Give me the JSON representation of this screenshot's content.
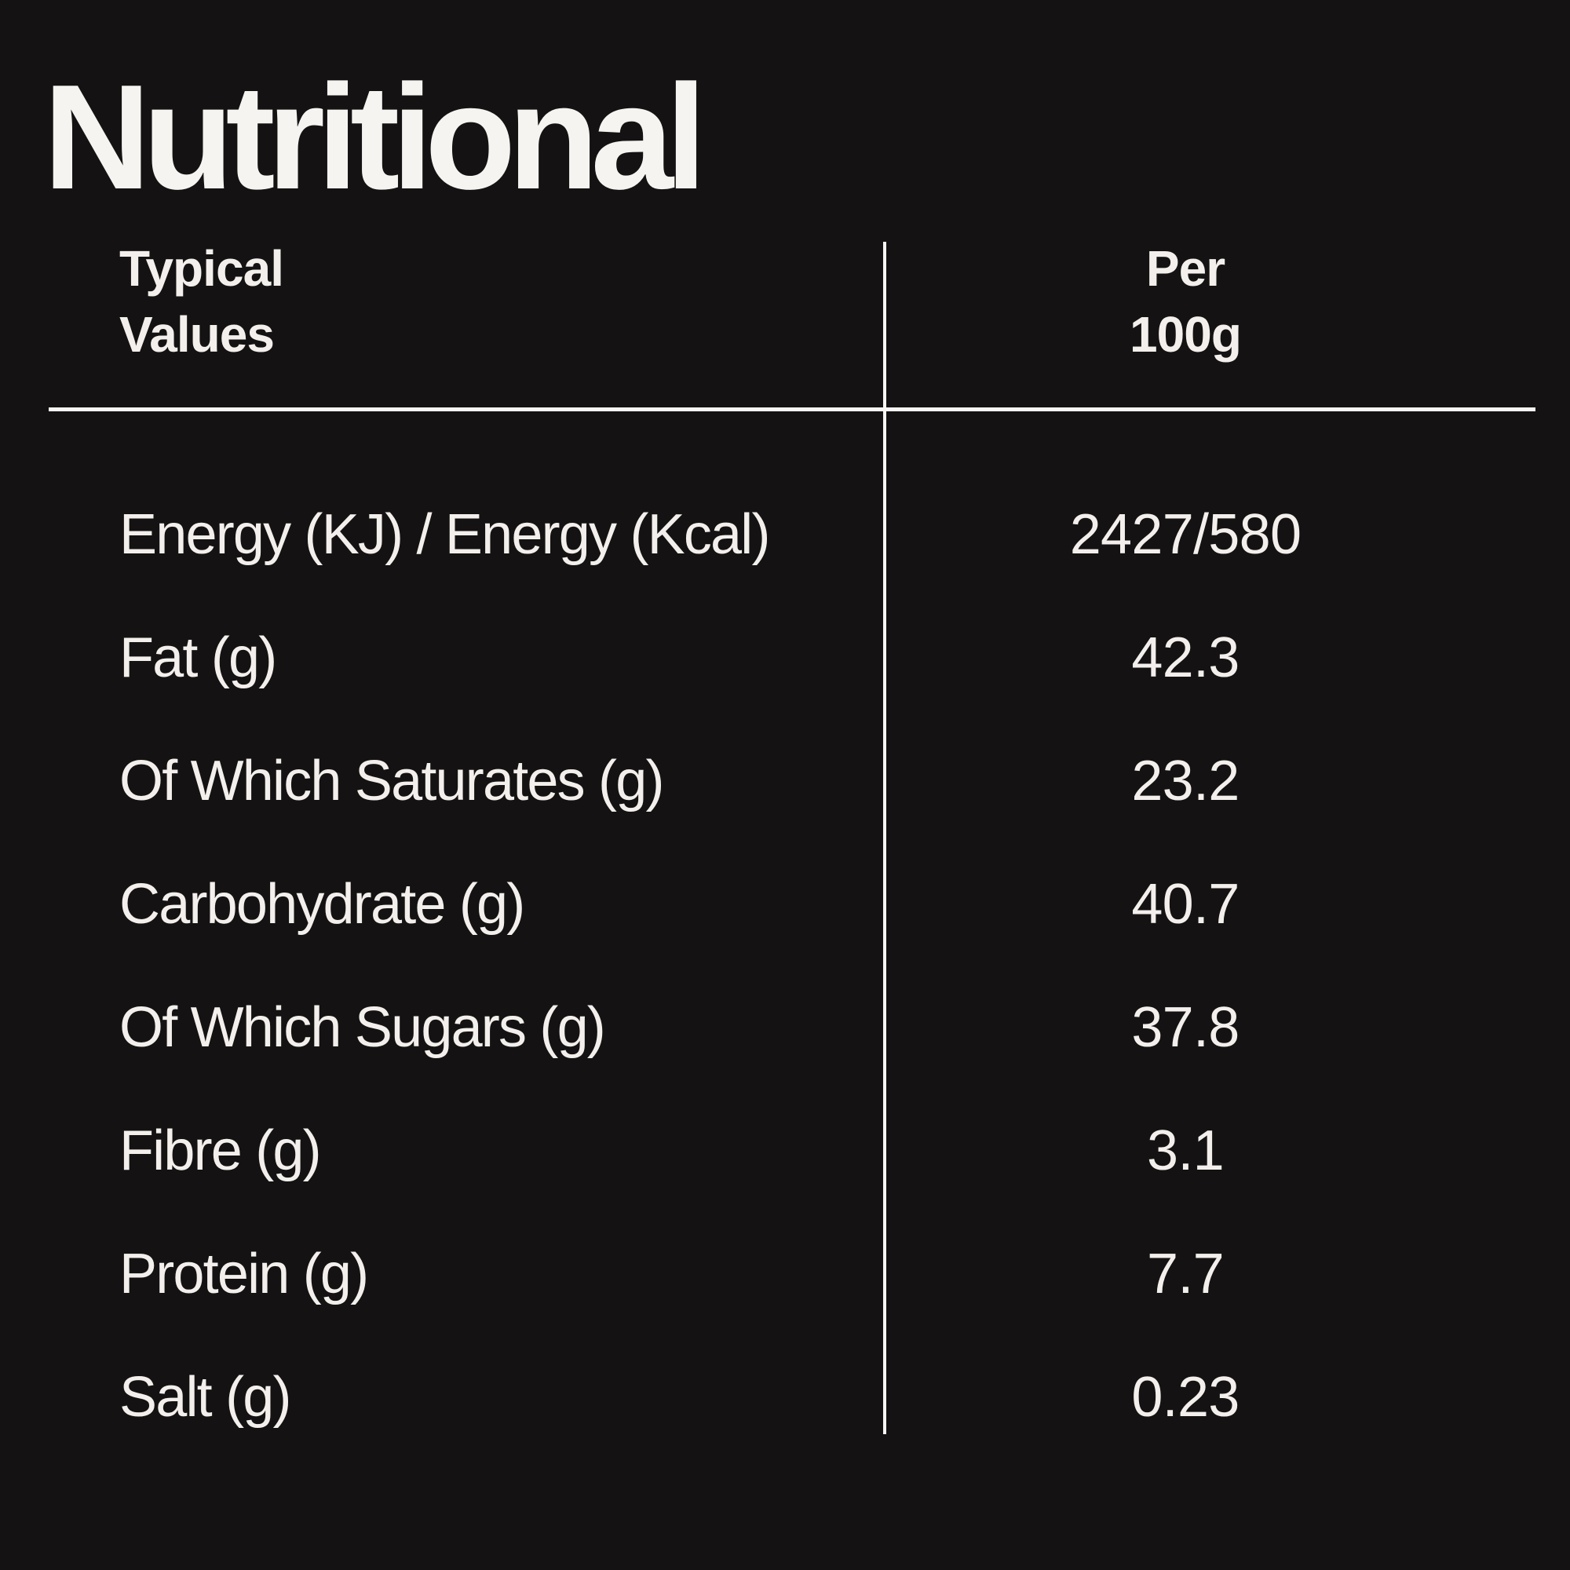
{
  "title": "Nutritional",
  "colors": {
    "background": "#151213",
    "text": "#f2efec",
    "rule": "#f8f6f3"
  },
  "table": {
    "header": {
      "typical_values": "Typical\nValues",
      "per_100g": "Per\n100g"
    },
    "rows": [
      {
        "label": "Energy (KJ) / Energy (Kcal)",
        "value": "2427/580"
      },
      {
        "label": "Fat (g)",
        "value": "42.3"
      },
      {
        "label": "Of Which Saturates (g)",
        "value": "23.2"
      },
      {
        "label": "Carbohydrate (g)",
        "value": "40.7"
      },
      {
        "label": "Of Which Sugars (g)",
        "value": "37.8"
      },
      {
        "label": "Fibre (g)",
        "value": "3.1"
      },
      {
        "label": "Protein (g)",
        "value": "7.7"
      },
      {
        "label": "Salt (g)",
        "value": "0.23"
      }
    ]
  }
}
